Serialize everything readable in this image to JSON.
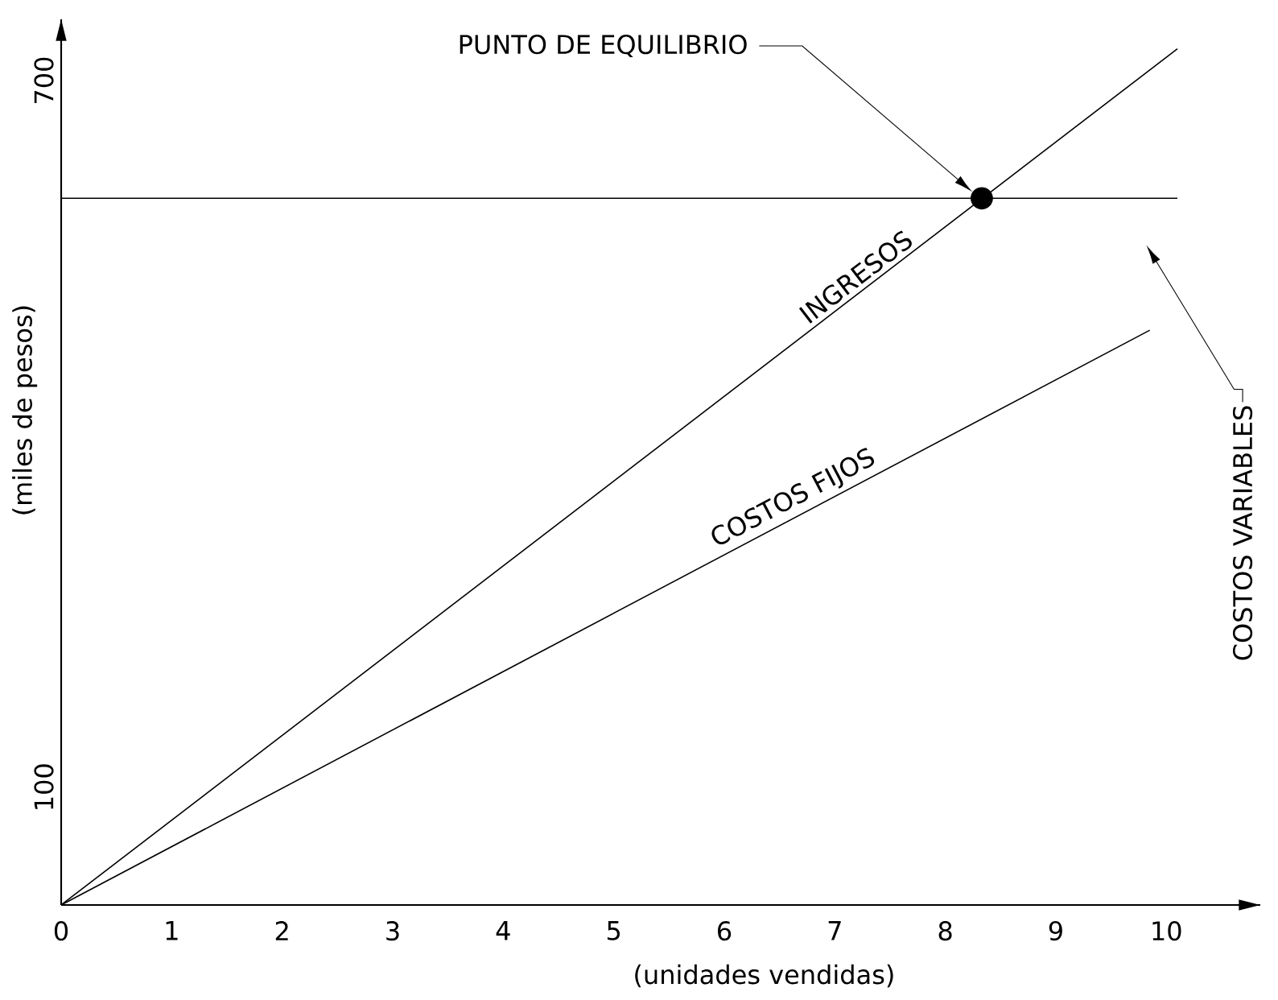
{
  "chart_data": {
    "type": "line",
    "xlabel": "(unidades vendidas)",
    "ylabel": "(miles de pesos)",
    "xlim": [
      0,
      10.85
    ],
    "ylim": [
      0,
      752
    ],
    "xticks": [
      0,
      1,
      2,
      3,
      4,
      5,
      6,
      7,
      8,
      9,
      10
    ],
    "yticks": [
      100,
      700
    ],
    "grid": false,
    "legend": false,
    "marker": "none",
    "line_style": "solid",
    "series": [
      {
        "name": "INGRESOS",
        "color": "#000000",
        "x": [
          0,
          10.1
        ],
        "values": [
          0,
          727
        ]
      },
      {
        "name": "COSTOS FIJOS",
        "color": "#000000",
        "x": [
          0,
          9.85
        ],
        "values": [
          0,
          488
        ]
      },
      {
        "color": "#000000",
        "x": [
          0,
          10.1
        ],
        "values": [
          600,
          600
        ]
      },
      {
        "type": "scatter",
        "color": "#000000",
        "marker": "circle",
        "x": [
          8.33
        ],
        "values": [
          600
        ]
      }
    ],
    "annotations": [
      "PUNTO DE EQUILIBRIO",
      "COSTOS VARIABLES"
    ]
  }
}
